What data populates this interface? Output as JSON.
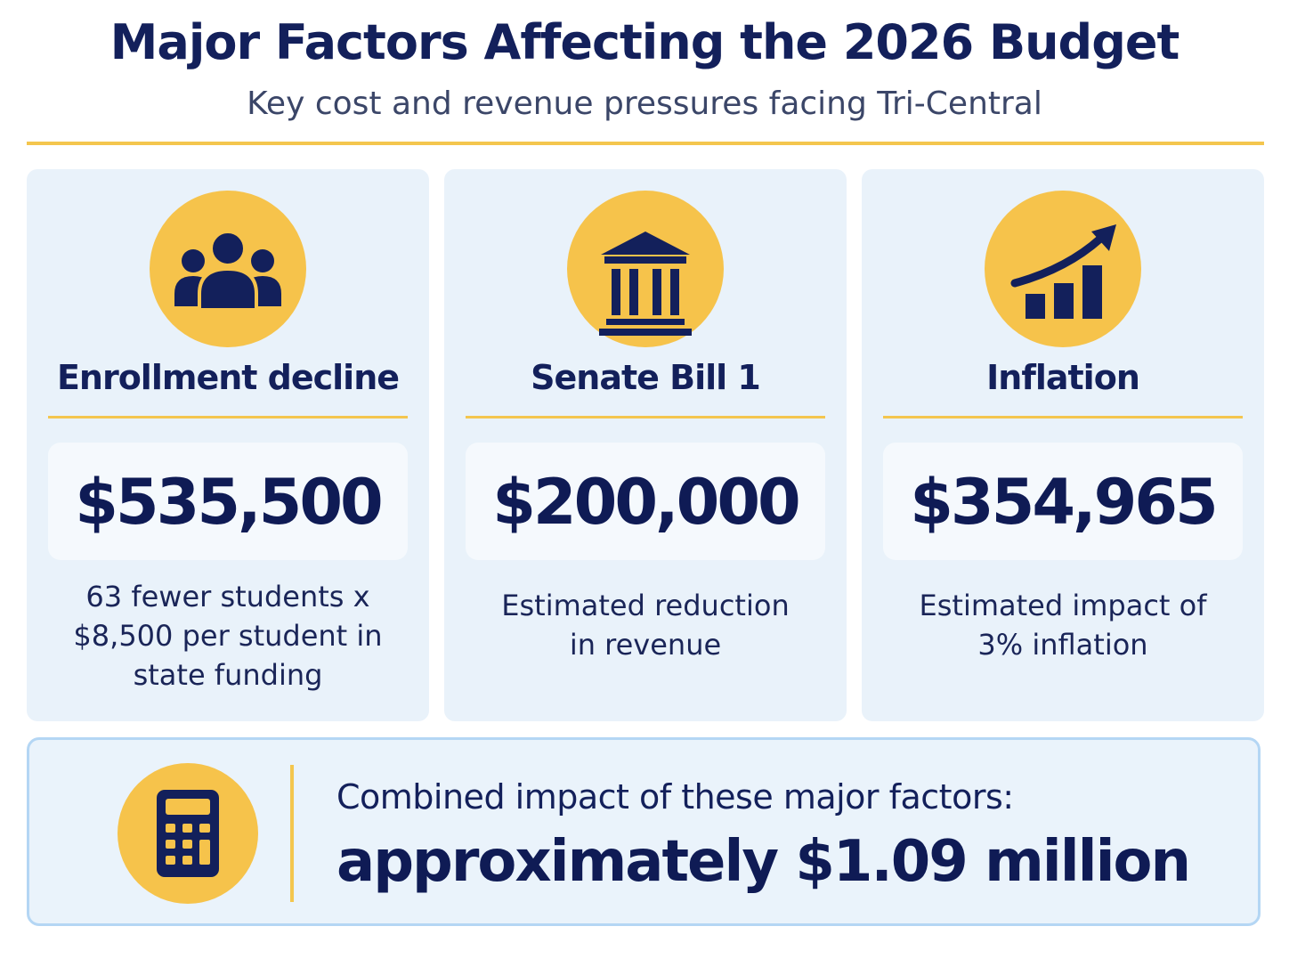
{
  "header": {
    "title": "Major Factors Affecting the 2026 Budget",
    "subtitle": "Key cost and revenue pressures facing Tri-Central"
  },
  "colors": {
    "navy": "#13205b",
    "accent_yellow": "#f6c34b",
    "card_background": "#e9f2fa",
    "summary_border": "#b4d6f4"
  },
  "cards": [
    {
      "icon": "people-group-icon",
      "title": "Enrollment decline",
      "amount": "$535,500",
      "description_lines": [
        "63 fewer students x",
        "$8,500 per student in",
        "state funding"
      ]
    },
    {
      "icon": "government-building-icon",
      "title": "Senate Bill 1",
      "amount": "$200,000",
      "description_lines": [
        "Estimated reduction",
        "in revenue"
      ]
    },
    {
      "icon": "rising-bar-chart-icon",
      "title": "Inflation",
      "amount": "$354,965",
      "description_lines": [
        "Estimated impact of",
        "3% inflation"
      ]
    }
  ],
  "summary": {
    "icon": "calculator-icon",
    "label": "Combined impact of these major factors:",
    "value": "approximately $1.09 million"
  }
}
